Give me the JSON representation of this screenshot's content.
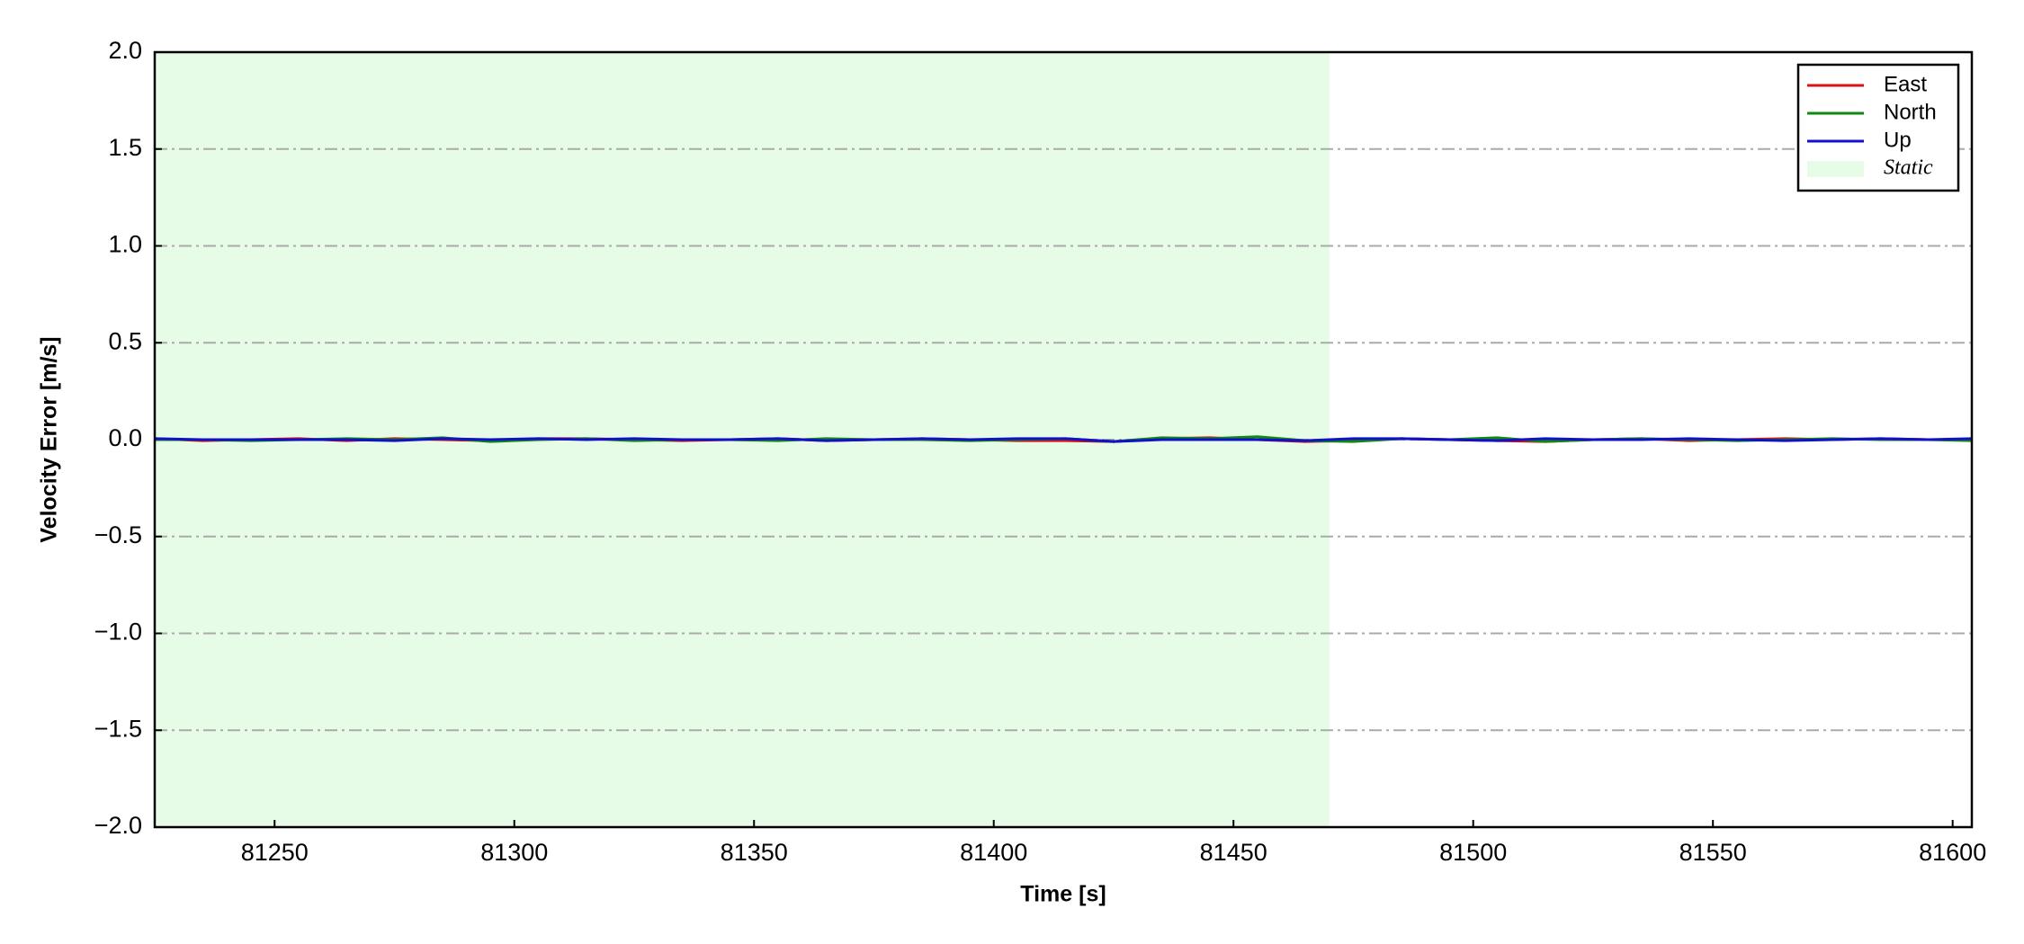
{
  "chart_data": {
    "type": "line",
    "xlabel": "Time [s]",
    "ylabel": "Velocity Error [m/s]",
    "x": [
      81225,
      81235,
      81245,
      81255,
      81265,
      81275,
      81285,
      81295,
      81305,
      81315,
      81325,
      81335,
      81345,
      81355,
      81365,
      81375,
      81385,
      81395,
      81405,
      81415,
      81425,
      81435,
      81445,
      81455,
      81465,
      81475,
      81485,
      81495,
      81505,
      81515,
      81525,
      81535,
      81545,
      81555,
      81565,
      81575,
      81585,
      81595,
      81604
    ],
    "series": [
      {
        "name": "East",
        "color": "#dd1111",
        "values": [
          0.005,
          -0.005,
          0.0,
          0.005,
          -0.005,
          0.005,
          0.0,
          -0.005,
          0.005,
          0.005,
          0.0,
          -0.005,
          0.0,
          0.005,
          -0.005,
          0.0,
          0.005,
          0.0,
          -0.005,
          -0.005,
          -0.01,
          0.005,
          0.01,
          0.0,
          -0.01,
          -0.005,
          0.005,
          0.0,
          -0.005,
          -0.01,
          0.0,
          0.005,
          -0.005,
          0.0,
          0.005,
          0.0,
          0.005,
          0.0,
          0.0
        ]
      },
      {
        "name": "North",
        "color": "#118811",
        "values": [
          0.0,
          0.0,
          -0.005,
          0.0,
          0.005,
          0.0,
          0.01,
          -0.01,
          0.0,
          0.005,
          -0.005,
          0.0,
          0.0,
          -0.005,
          0.005,
          0.0,
          0.0,
          -0.005,
          0.0,
          0.005,
          -0.01,
          0.01,
          0.005,
          0.015,
          -0.005,
          -0.01,
          0.005,
          0.0,
          0.01,
          -0.01,
          0.0,
          0.005,
          0.0,
          -0.005,
          0.0,
          0.005,
          0.0,
          0.0,
          -0.005
        ]
      },
      {
        "name": "Up",
        "color": "#1111cc",
        "values": [
          0.005,
          0.0,
          0.0,
          0.0,
          0.0,
          -0.005,
          0.005,
          0.0,
          0.005,
          0.0,
          0.005,
          0.0,
          0.0,
          0.005,
          -0.005,
          0.0,
          0.005,
          0.0,
          0.005,
          0.005,
          -0.01,
          0.0,
          0.0,
          0.0,
          -0.005,
          0.005,
          0.005,
          0.0,
          -0.005,
          0.005,
          0.0,
          0.0,
          0.005,
          0.0,
          -0.005,
          0.0,
          0.005,
          0.0,
          0.005
        ]
      }
    ],
    "spans": [
      {
        "name": "Static",
        "start": 81225,
        "end": 81470,
        "color": "#e6fce6"
      }
    ],
    "xlim": [
      81225,
      81604
    ],
    "xticks": [
      81250,
      81300,
      81350,
      81400,
      81450,
      81500,
      81550,
      81600
    ],
    "ylim": [
      -2,
      2
    ],
    "yticks": [
      {
        "value": -2,
        "label": "−2.0"
      },
      {
        "value": -1.5,
        "label": "−1.5"
      },
      {
        "value": -1,
        "label": "−1.0"
      },
      {
        "value": -0.5,
        "label": "−0.5"
      },
      {
        "value": 0,
        "label": "0.0"
      },
      {
        "value": 0.5,
        "label": "0.5"
      },
      {
        "value": 1,
        "label": "1.0"
      },
      1.5,
      {
        "value": 2,
        "label": "2.0"
      }
    ],
    "grid": true,
    "legend": "upper right"
  }
}
